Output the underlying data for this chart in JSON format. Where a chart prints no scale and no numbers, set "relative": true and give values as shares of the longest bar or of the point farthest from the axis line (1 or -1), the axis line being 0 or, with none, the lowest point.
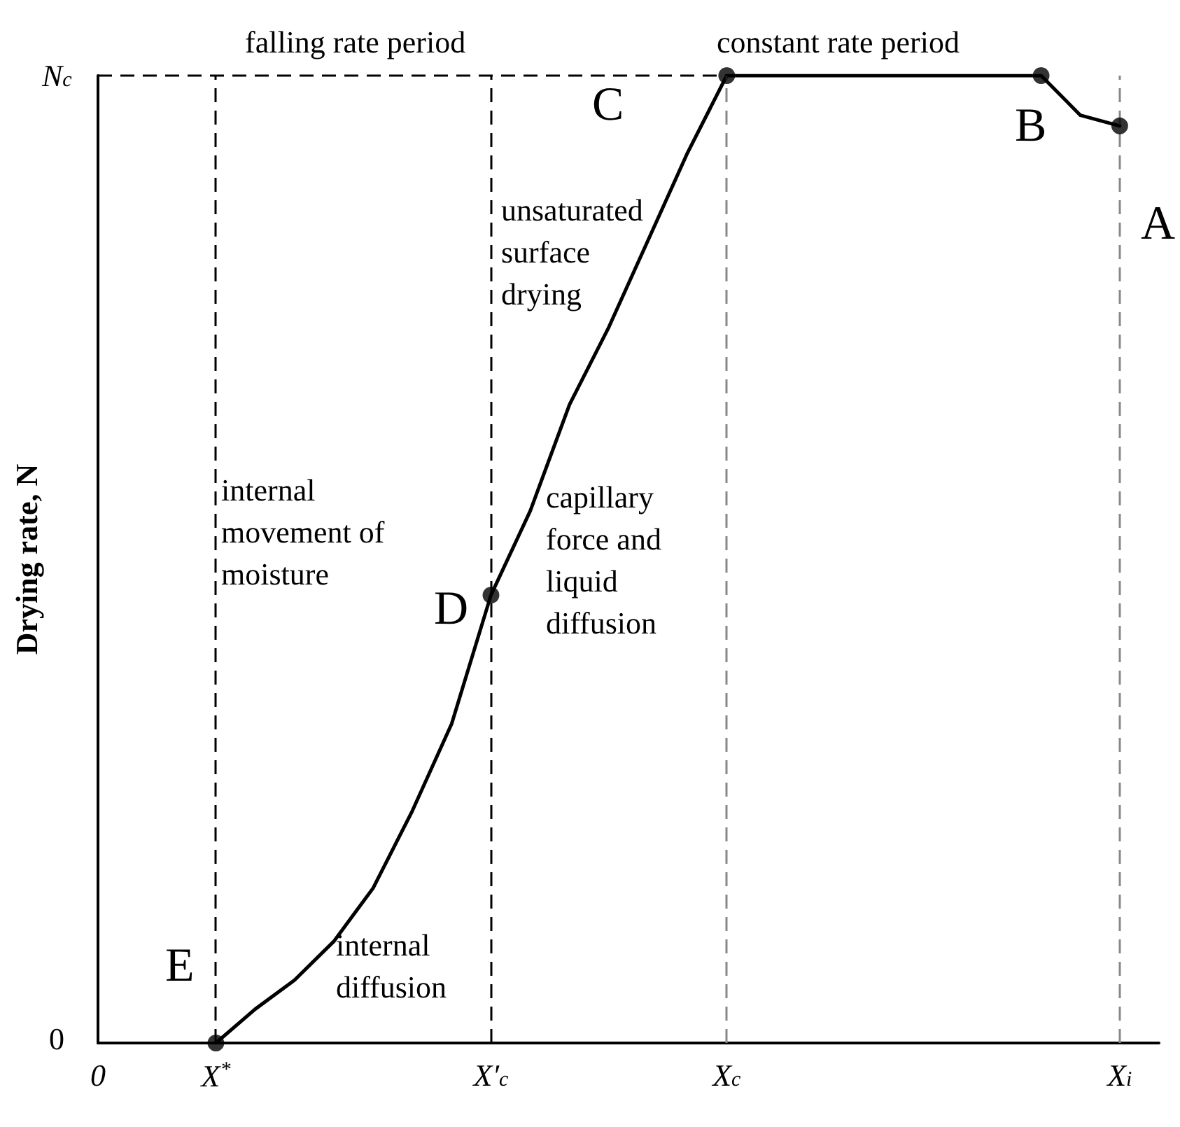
{
  "chart_data": {
    "type": "line",
    "relative": true,
    "ylabel": "Drying rate, N",
    "categories": [
      "0",
      null,
      null,
      "X$^{*}$",
      null,
      null,
      null,
      null,
      null,
      null,
      "X′$_{c}$",
      null,
      null,
      null,
      null,
      null,
      "X$_{c}$",
      null,
      null,
      null,
      null,
      null,
      null,
      null,
      null,
      null,
      "X$_{i}$",
      null
    ],
    "series": [
      {
        "color": "#000000",
        "marker": "none",
        "line_style": "solid",
        "values": [
          null,
          null,
          null,
          0,
          0.035,
          0.065,
          0.105,
          0.16,
          0.24,
          0.33,
          0.463,
          0.55,
          0.66,
          0.74,
          0.83,
          0.92,
          1,
          1,
          1,
          1,
          1,
          1,
          1,
          1,
          1,
          0.959,
          0.948,
          null
        ]
      },
      {
        "type": "scatter",
        "color": "#000000",
        "marker": "circle",
        "values": [
          null,
          null,
          null,
          0,
          null,
          null,
          null,
          null,
          null,
          null,
          0.463,
          null,
          null,
          null,
          null,
          null,
          1,
          null,
          null,
          null,
          null,
          null,
          null,
          null,
          1,
          null,
          0.948,
          null
        ]
      }
    ],
    "ref_lines": [
      {
        "axis": "y",
        "value": 1,
        "label": "N$_{c}$",
        "color": "#000000",
        "line_style": "dashed"
      },
      {
        "axis": "x",
        "value": "X$^{*}$",
        "label": null,
        "color": "#000000",
        "line_style": "dashed"
      },
      {
        "axis": "x",
        "value": "X′$_{c}$",
        "label": null,
        "color": "#000000",
        "line_style": "dashed"
      },
      {
        "axis": "x",
        "value": "X$_{c}$",
        "label": null,
        "color": "#888888",
        "line_style": "dashed"
      },
      {
        "axis": "x",
        "value": "X$_{i}$",
        "label": null,
        "color": "#888888",
        "line_style": "dashed"
      }
    ],
    "annotations": [
      "falling rate period",
      "constant rate period",
      "C",
      "B",
      "A",
      "D",
      "E",
      "unsaturated\nsurface\ndrying",
      "internal\nmovement of\nmoisture",
      "capillary\nforce and\nliquid\ndiffusion",
      "internal\ndiffusion",
      "0"
    ]
  }
}
